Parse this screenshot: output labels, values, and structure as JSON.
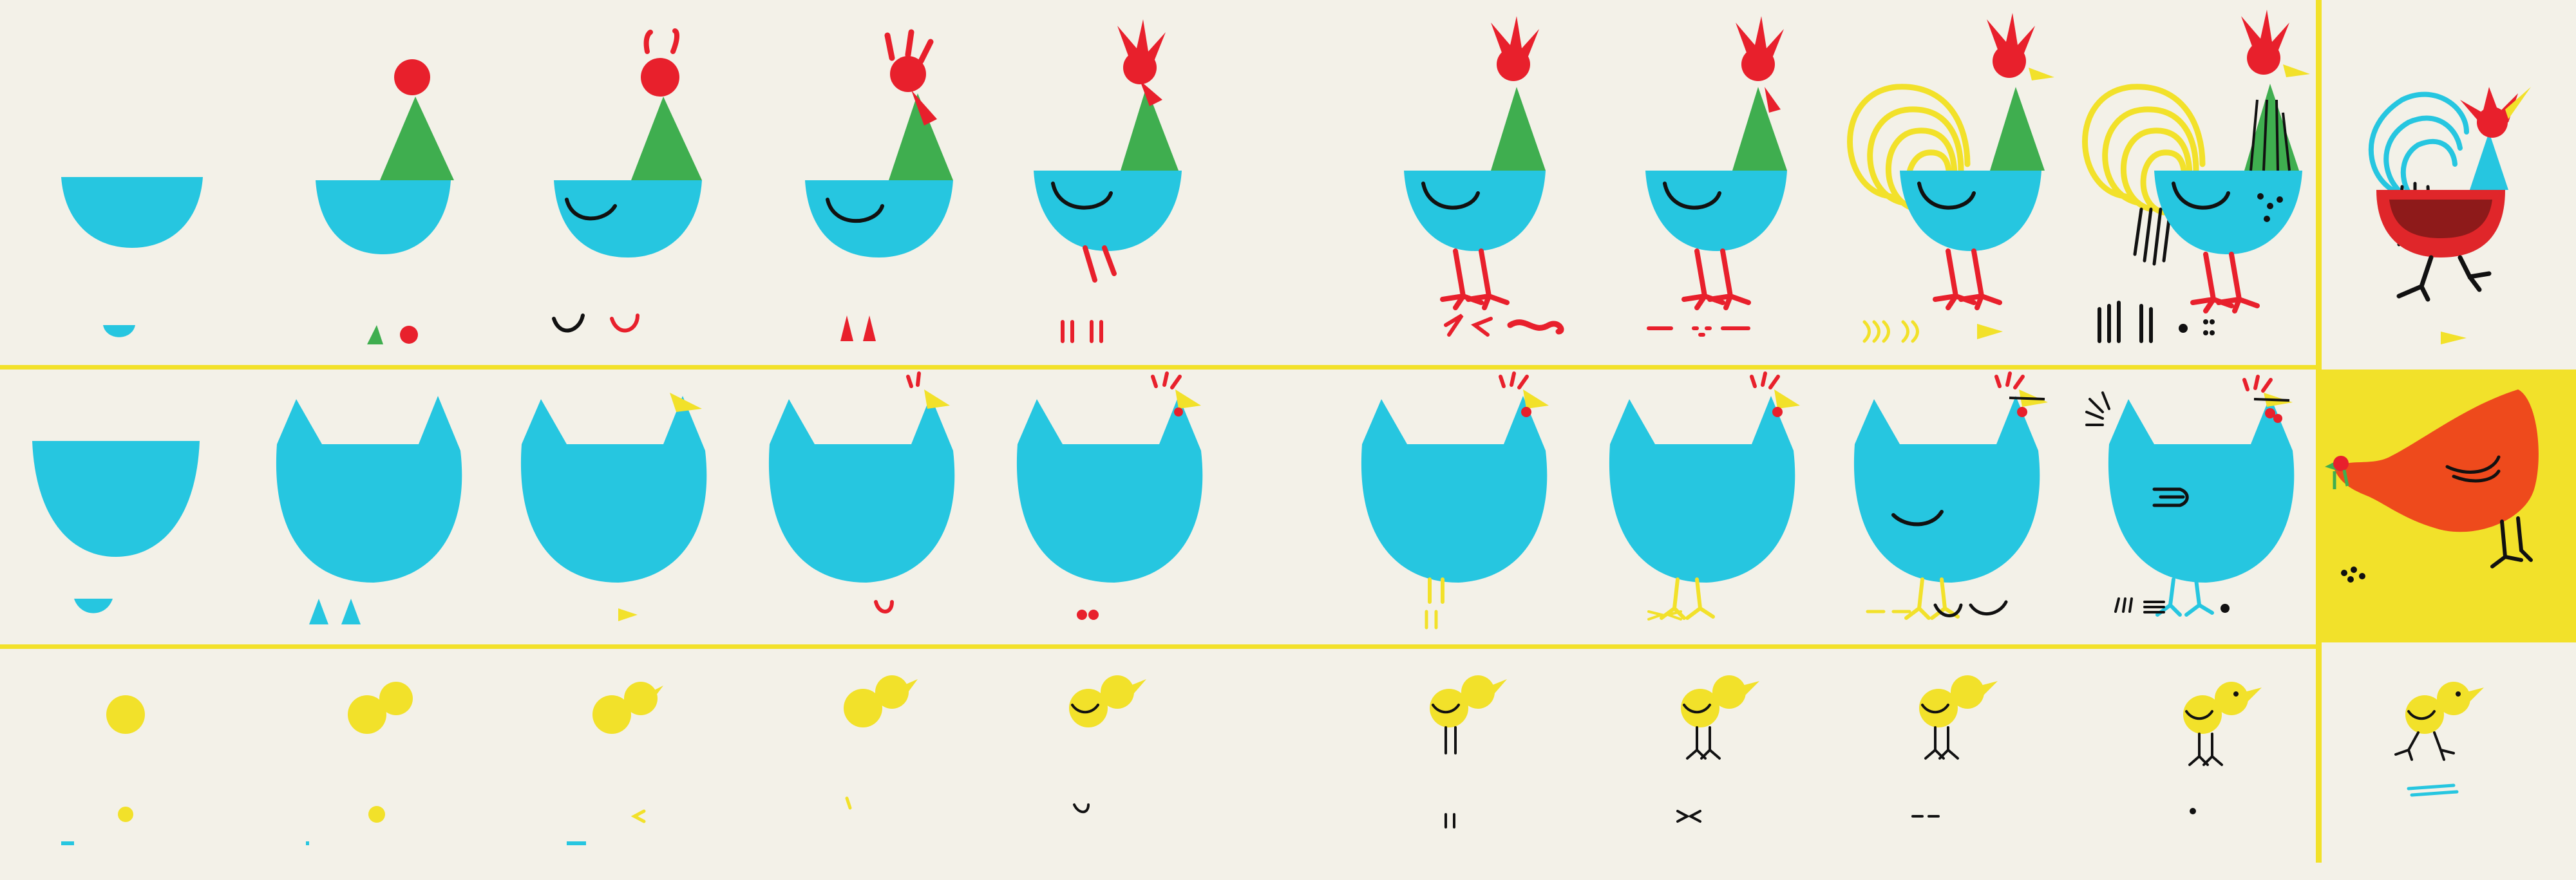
{
  "colors": {
    "paper": "#f3f1e8",
    "cyan": "#26c6e0",
    "green": "#3fae4f",
    "red": "#e8202c",
    "yellow": "#f2e12a",
    "orange": "#ee4a1c",
    "dark-red": "#8e1a1a",
    "ink": "#111111"
  },
  "rows": [
    {
      "name": "rooster-row",
      "steps": [
        "rooster-step-1",
        "rooster-step-2",
        "rooster-step-3",
        "rooster-step-4",
        "rooster-step-5",
        "rooster-step-6",
        "rooster-step-7",
        "rooster-step-8",
        "rooster-step-9"
      ],
      "finished": "rooster-final"
    },
    {
      "name": "hen-row",
      "steps": [
        "hen-step-1",
        "hen-step-2",
        "hen-step-3",
        "hen-step-4",
        "hen-step-5",
        "hen-step-6",
        "hen-step-7",
        "hen-step-8",
        "hen-step-9"
      ],
      "finished": "hen-final"
    },
    {
      "name": "chick-row",
      "steps": [
        "chick-step-1",
        "chick-step-2",
        "chick-step-3",
        "chick-step-4",
        "chick-step-5",
        "chick-step-6",
        "chick-step-7",
        "chick-step-8",
        "chick-step-9"
      ],
      "finished": "chick-final"
    }
  ]
}
